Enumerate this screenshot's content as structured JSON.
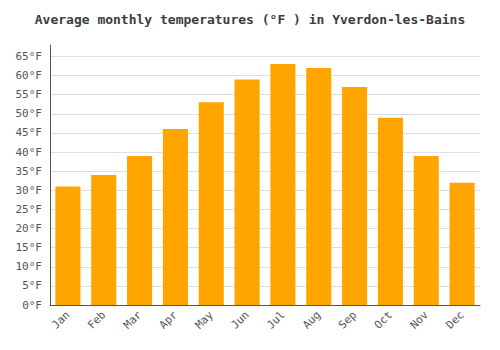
{
  "chart_data": {
    "type": "bar",
    "title": "Average monthly temperatures (°F ) in Yverdon-les-Bains",
    "categories": [
      "Jan",
      "Feb",
      "Mar",
      "Apr",
      "May",
      "Jun",
      "Jul",
      "Aug",
      "Sep",
      "Oct",
      "Nov",
      "Dec"
    ],
    "values": [
      31,
      34,
      39,
      46,
      53,
      59,
      63,
      62,
      57,
      49,
      39,
      32
    ],
    "color": "#FFA500",
    "ylim": [
      0,
      68
    ],
    "yticks": [
      {
        "value": 0,
        "label": "0°F"
      },
      {
        "value": 5,
        "label": "5°F"
      },
      {
        "value": 10,
        "label": "10°F"
      },
      {
        "value": 15,
        "label": "15°F"
      },
      {
        "value": 20,
        "label": "20°F"
      },
      {
        "value": 25,
        "label": "25°F"
      },
      {
        "value": 30,
        "label": "30°F"
      },
      {
        "value": 35,
        "label": "35°F"
      },
      {
        "value": 40,
        "label": "40°F"
      },
      {
        "value": 45,
        "label": "45°F"
      },
      {
        "value": 50,
        "label": "50°F"
      },
      {
        "value": 55,
        "label": "55°F"
      },
      {
        "value": 60,
        "label": "60°F"
      },
      {
        "value": 65,
        "label": "65°F"
      }
    ],
    "grid": true
  }
}
